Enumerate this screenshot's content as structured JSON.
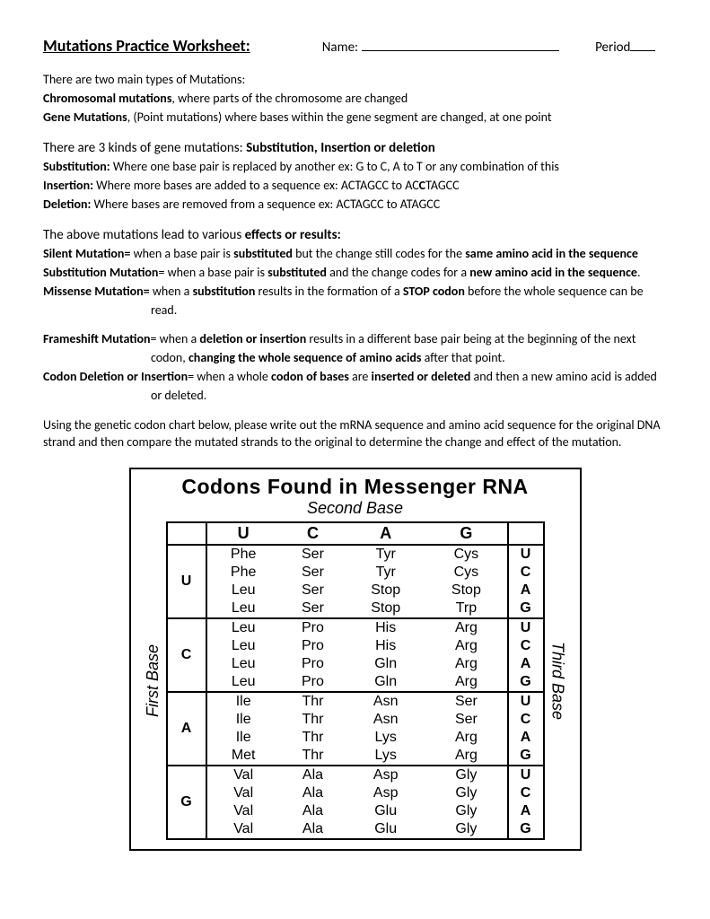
{
  "header": {
    "title": "Mutations Practice Worksheet:",
    "name_label": "Name:",
    "period_label": "Period"
  },
  "intro": {
    "line1": "There are two main types of Mutations:",
    "chrom_bold": "Chromosomal mutations",
    "chrom_rest": ", where parts of the chromosome are changed",
    "gene_bold": "Gene Mutations",
    "gene_rest": ", (Point mutations) where bases within the gene segment are changed, at one point"
  },
  "kinds": {
    "lead": "There are 3 kinds of gene mutations:  ",
    "bold": "Substitution, Insertion or deletion",
    "sub_b": "Substitution:",
    "sub_t": "  Where one base pair is replaced by another  ex:  G to C,  A to T or any combination of this",
    "ins_b": "Insertion:",
    "ins_t_a": "  Where more bases are added to a sequence  ex:  ACTAGCC to AC",
    "ins_t_mid": "C",
    "ins_t_b": "TAGCC",
    "del_b": "Deletion:",
    "del_t": "  Where bases are removed from a sequence  ex:  ACTAGCC to ATAGCC"
  },
  "effects": {
    "lead": " The above mutations lead to various ",
    "lead_b": "effects or results:",
    "silent_b": "Silent Mutation=",
    "silent_1": " when a base pair is ",
    "silent_2b": "substituted",
    "silent_3": " but the change still codes for the ",
    "silent_4b": "same amino acid in the sequence",
    "subm_b": "Substitution Mutation",
    "subm_1": "= when a base pair is ",
    "subm_2b": "substituted",
    "subm_3": " and the change codes for a ",
    "subm_4b": "new amino acid in the sequence",
    "subm_5": ".",
    "mis_b": "Missense Mutation=",
    "mis_1": "  when a ",
    "mis_2b": "substitution",
    "mis_3": " results in the formation of a ",
    "mis_4b": "STOP codon",
    "mis_5": " before the whole sequence can be",
    "mis_6": "read.",
    "frame_b": "Frameshift Mutation",
    "frame_1": "= when a ",
    "frame_2b": "deletion or insertion",
    "frame_3": " results in a different base pair being at the beginning of the next",
    "frame_4": "codon, ",
    "frame_5b": "changing the whole sequence of amino acids",
    "frame_6": " after that point.",
    "cdi_b": "Codon Deletion or Insertion",
    "cdi_1": "= when a whole ",
    "cdi_2b": "codon of bases",
    "cdi_3": " are ",
    "cdi_4b": "inserted or deleted",
    "cdi_5": " and then a new amino acid is added",
    "cdi_6": "or deleted."
  },
  "instructions": "Using the genetic codon chart below, please write out the mRNA sequence and amino acid sequence for the original DNA strand and then compare the mutated strands to the original to determine the change and effect of the mutation.",
  "chart": {
    "title": "Codons Found in Messenger RNA",
    "subtitle": "Second Base",
    "first_label": "First Base",
    "third_label": "Third Base",
    "second_bases": [
      "U",
      "C",
      "A",
      "G"
    ],
    "first_bases": [
      "U",
      "C",
      "A",
      "G"
    ],
    "third_bases": [
      "U",
      "C",
      "A",
      "G"
    ],
    "cells": {
      "U": {
        "U": [
          "Phe",
          "Phe",
          "Leu",
          "Leu"
        ],
        "C": [
          "Ser",
          "Ser",
          "Ser",
          "Ser"
        ],
        "A": [
          "Tyr",
          "Tyr",
          "Stop",
          "Stop"
        ],
        "G": [
          "Cys",
          "Cys",
          "Stop",
          "Trp"
        ]
      },
      "C": {
        "U": [
          "Leu",
          "Leu",
          "Leu",
          "Leu"
        ],
        "C": [
          "Pro",
          "Pro",
          "Pro",
          "Pro"
        ],
        "A": [
          "His",
          "His",
          "Gln",
          "Gln"
        ],
        "G": [
          "Arg",
          "Arg",
          "Arg",
          "Arg"
        ]
      },
      "A": {
        "U": [
          "Ile",
          "Ile",
          "Ile",
          "Met"
        ],
        "C": [
          "Thr",
          "Thr",
          "Thr",
          "Thr"
        ],
        "A": [
          "Asn",
          "Asn",
          "Lys",
          "Lys"
        ],
        "G": [
          "Ser",
          "Ser",
          "Arg",
          "Arg"
        ]
      },
      "G": {
        "U": [
          "Val",
          "Val",
          "Val",
          "Val"
        ],
        "C": [
          "Ala",
          "Ala",
          "Ala",
          "Ala"
        ],
        "A": [
          "Asp",
          "Asp",
          "Glu",
          "Glu"
        ],
        "G": [
          "Gly",
          "Gly",
          "Gly",
          "Gly"
        ]
      }
    }
  }
}
